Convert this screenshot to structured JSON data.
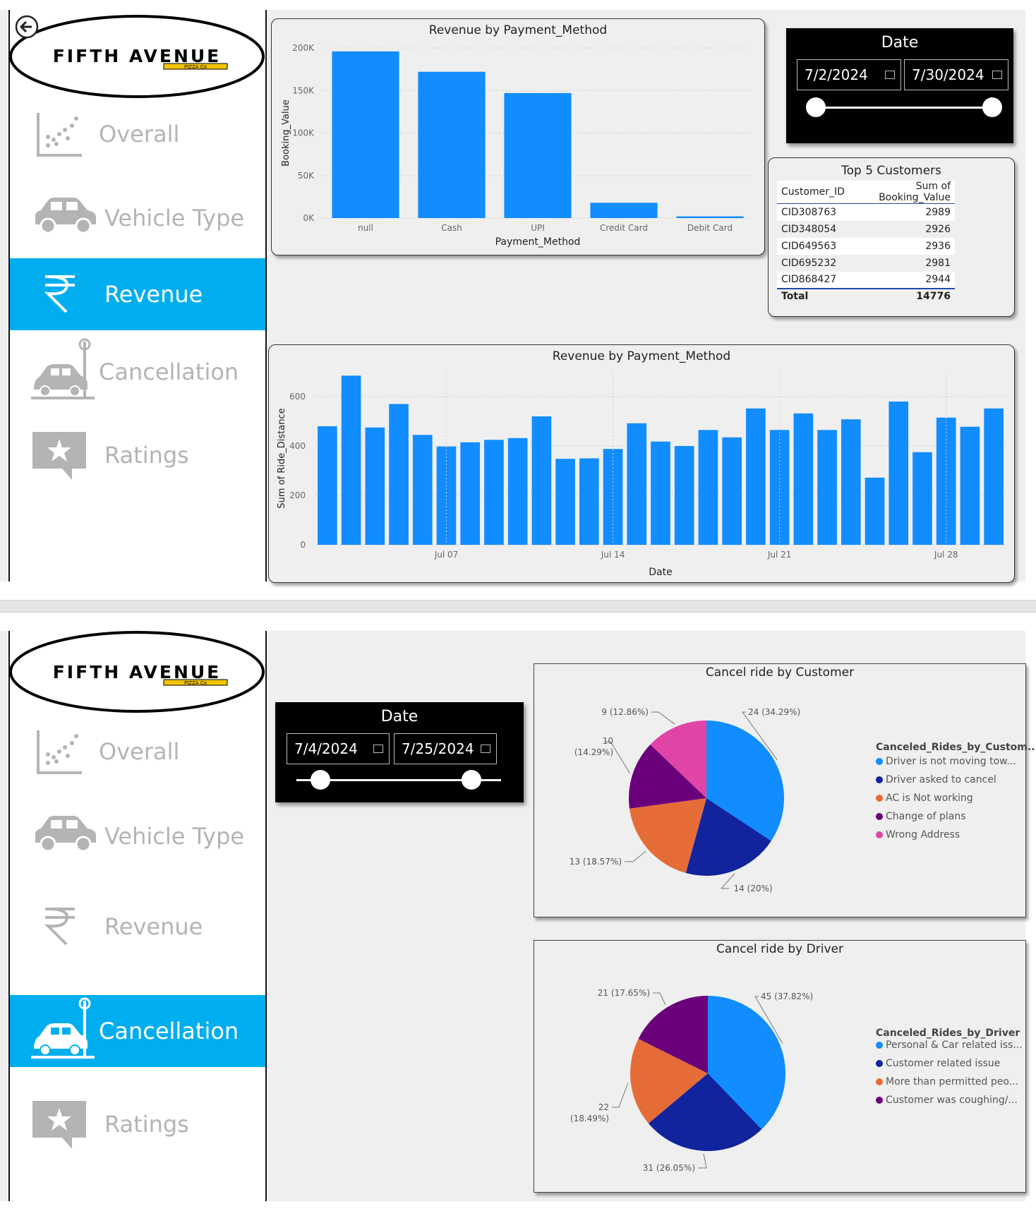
{
  "logo": {
    "main": "FIFTH AVENUE",
    "sub": "PIZZA Co"
  },
  "nav": {
    "overall": "Overall",
    "vehicle": "Vehicle Type",
    "revenue": "Revenue",
    "cancellation": "Cancellation",
    "ratings": "Ratings"
  },
  "page1": {
    "date_slicer": {
      "title": "Date",
      "start": "7/2/2024",
      "end": "7/30/2024"
    },
    "top5": {
      "title": "Top 5 Customers",
      "headers": [
        "Customer_ID",
        "Sum of Booking_Value"
      ],
      "rows": [
        [
          "CID308763",
          "2989"
        ],
        [
          "CID348054",
          "2926"
        ],
        [
          "CID649563",
          "2936"
        ],
        [
          "CID695232",
          "2981"
        ],
        [
          "CID868427",
          "2944"
        ]
      ],
      "total_label": "Total",
      "total_value": "14776"
    }
  },
  "page2": {
    "date_slicer": {
      "title": "Date",
      "start": "7/4/2024",
      "end": "7/25/2024"
    }
  },
  "chart_data": [
    {
      "type": "bar",
      "title": "Revenue by Payment_Method",
      "xlabel": "Payment_Method",
      "ylabel": "Booking_Value",
      "categories": [
        "null",
        "Cash",
        "UPI",
        "Credit Card",
        "Debit Card"
      ],
      "values": [
        196000,
        172000,
        147000,
        18000,
        2000
      ],
      "ylim": [
        0,
        200000
      ],
      "yticks": [
        "0K",
        "50K",
        "100K",
        "150K",
        "200K"
      ],
      "color": "#118dff"
    },
    {
      "type": "bar",
      "title": "Revenue by Payment_Method",
      "xlabel": "Date",
      "ylabel": "Sum of Ride_Distance",
      "x": [
        "2024-07-02",
        "2024-07-03",
        "2024-07-04",
        "2024-07-05",
        "2024-07-06",
        "2024-07-07",
        "2024-07-08",
        "2024-07-09",
        "2024-07-10",
        "2024-07-11",
        "2024-07-12",
        "2024-07-13",
        "2024-07-14",
        "2024-07-15",
        "2024-07-16",
        "2024-07-17",
        "2024-07-18",
        "2024-07-19",
        "2024-07-20",
        "2024-07-21",
        "2024-07-22",
        "2024-07-23",
        "2024-07-24",
        "2024-07-25",
        "2024-07-26",
        "2024-07-27",
        "2024-07-28",
        "2024-07-29",
        "2024-07-30"
      ],
      "values": [
        480,
        685,
        475,
        570,
        445,
        398,
        415,
        425,
        432,
        520,
        348,
        350,
        388,
        492,
        418,
        400,
        465,
        435,
        552,
        465,
        532,
        465,
        508,
        272,
        580,
        375,
        515,
        478,
        552
      ],
      "ylim": [
        0,
        700
      ],
      "yticks": [
        "0",
        "200",
        "400",
        "600"
      ],
      "xticks": [
        "Jul 07",
        "Jul 14",
        "Jul 21",
        "Jul 28"
      ],
      "color": "#118dff"
    },
    {
      "type": "pie",
      "title": "Cancel ride by Customer",
      "legend_title": "Canceled_Rides_by_Custom...",
      "legend": [
        "Driver is not moving tow...",
        "Driver asked to cancel",
        "AC is Not working",
        "Change of plans",
        "Wrong Address"
      ],
      "values": [
        24,
        14,
        13,
        10,
        9
      ],
      "labels": [
        "24 (34.29%)",
        "14 (20%)",
        "13 (18.57%)",
        "10 (14.29%)",
        "9 (12.86%)"
      ],
      "colors": [
        "#118dff",
        "#12239e",
        "#e66c37",
        "#6b007b",
        "#e044a7"
      ]
    },
    {
      "type": "pie",
      "title": "Cancel ride by Driver",
      "legend_title": "Canceled_Rides_by_Driver",
      "legend": [
        "Personal & Car related iss...",
        "Customer related issue",
        "More than permitted peo...",
        "Customer was coughing/..."
      ],
      "values": [
        45,
        31,
        22,
        21
      ],
      "labels": [
        "45 (37.82%)",
        "31 (26.05%)",
        "22 (18.49%)",
        "21 (17.65%)"
      ],
      "colors": [
        "#118dff",
        "#12239e",
        "#e66c37",
        "#6b007b"
      ]
    }
  ]
}
